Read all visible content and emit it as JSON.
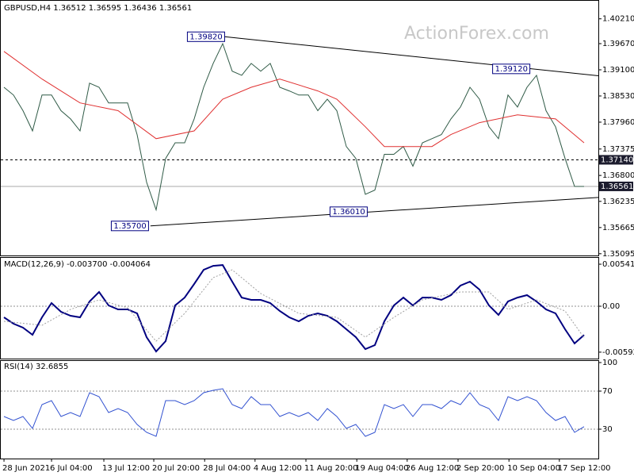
{
  "watermark": "ActionForex.com",
  "chart_data": [
    {
      "type": "line",
      "title": "GBPUSD,H4  1.36512 1.36595 1.36436 1.36561",
      "xlim": [
        -0.42,
        62.5
      ],
      "ylim": [
        1.3504,
        1.4062
      ],
      "grid": false,
      "yticks": [
        {
          "value": 1.4021,
          "label": "1.40210"
        },
        {
          "value": 1.3967,
          "label": "1.39670"
        },
        {
          "value": 1.391,
          "label": "1.39100"
        },
        {
          "value": 1.3853,
          "label": "1.38530"
        },
        {
          "value": 1.3796,
          "label": "1.37960"
        },
        1.37375,
        {
          "value": 1.368,
          "label": "1.36800"
        },
        1.36235,
        1.35665,
        1.35095
      ],
      "series": [
        {
          "name": "GBPUSD",
          "color": "#2f5a46",
          "style": "thin",
          "values": [
            1.3872,
            1.3855,
            1.3821,
            1.3777,
            1.3855,
            1.3855,
            1.3821,
            1.3803,
            1.3777,
            1.3881,
            1.3872,
            1.3838,
            1.3838,
            1.3838,
            1.3769,
            1.3665,
            1.3605,
            1.3717,
            1.3751,
            1.3751,
            1.3803,
            1.3872,
            1.3924,
            1.3967,
            1.3907,
            1.3898,
            1.3924,
            1.3907,
            1.3924,
            1.3872,
            1.3864,
            1.3855,
            1.3855,
            1.3821,
            1.3846,
            1.3821,
            1.3743,
            1.3717,
            1.3639,
            1.3648,
            1.3726,
            1.3726,
            1.3743,
            1.37,
            1.3751,
            1.376,
            1.3769,
            1.3803,
            1.3829,
            1.3872,
            1.3846,
            1.3786,
            1.376,
            1.3855,
            1.3829,
            1.3872,
            1.3898,
            1.3821,
            1.3786,
            1.3717,
            1.3656,
            1.36561
          ]
        },
        {
          "name": "MA",
          "color": "#e03030",
          "style": "thin",
          "x": [
            0,
            4,
            8,
            12,
            16,
            20,
            23,
            26,
            29,
            33,
            35,
            38,
            40,
            45,
            47,
            50,
            54,
            58,
            61
          ],
          "values": [
            1.395,
            1.389,
            1.3838,
            1.3821,
            1.376,
            1.3777,
            1.3846,
            1.3872,
            1.389,
            1.3864,
            1.3846,
            1.3786,
            1.3743,
            1.3743,
            1.3769,
            1.3795,
            1.3812,
            1.3803,
            1.3751
          ]
        }
      ],
      "trendlines": [
        {
          "x": [
            23.2,
            62.5
          ],
          "values": [
            1.3982,
            1.3897
          ]
        },
        {
          "x": [
            15.4,
            62.5
          ],
          "values": [
            1.357,
            1.3632
          ]
        }
      ],
      "annotations": [
        {
          "x": 23.2,
          "value": 1.3982,
          "label": "1.39820"
        },
        {
          "x": 55.3,
          "value": 1.3912,
          "label": "1.39120"
        },
        {
          "x": 15.2,
          "value": 1.357,
          "label": "1.35700"
        },
        {
          "x": 38.2,
          "value": 1.3601,
          "label": "1.36010"
        }
      ],
      "level_line": {
        "value": 1.3714,
        "label": "1.37140"
      },
      "current_price": 1.36561
    },
    {
      "type": "line",
      "title": "MACD(12,26,9) -0.003700 -0.004064",
      "xlim": [
        -0.42,
        62.5
      ],
      "ylim": [
        -0.00675,
        0.00624
      ],
      "grid": false,
      "zero_line": true,
      "yticks": [
        0.005419,
        {
          "value": 0,
          "label": "0.00"
        },
        -0.005921
      ],
      "series": [
        {
          "name": "MACD",
          "color": "#000080",
          "style": "thick",
          "values": [
            -0.00143,
            -0.00225,
            -0.00276,
            -0.00368,
            -0.00143,
            0.00041,
            -0.00072,
            -0.00123,
            -0.00143,
            0.00061,
            0.00184,
            0.0001,
            -0.00041,
            -0.00041,
            -0.00092,
            -0.00399,
            -0.00583,
            -0.0045,
            0.0001,
            0.00112,
            0.00286,
            0.0047,
            0.00521,
            0.00531,
            0.00317,
            0.00112,
            0.00082,
            0.00082,
            0.00041,
            -0.00061,
            -0.00143,
            -0.00194,
            -0.00123,
            -0.00092,
            -0.00123,
            -0.00194,
            -0.00297,
            -0.00399,
            -0.00552,
            -0.00501,
            -0.00194,
            0.0001,
            0.00112,
            0.0001,
            0.00112,
            0.00112,
            0.00082,
            0.00143,
            0.00266,
            0.00317,
            0.00215,
            0.0001,
            -0.00112,
            0.00061,
            0.00112,
            0.00143,
            0.00061,
            -0.00041,
            -0.00092,
            -0.00297,
            -0.0048,
            -0.0037
          ]
        },
        {
          "name": "Signal",
          "color": "#a0a0a0",
          "style": "dotted",
          "x": [
            0,
            4,
            7,
            10,
            13,
            16,
            19,
            22,
            24,
            27,
            31,
            35,
            38,
            41,
            44,
            48,
            51,
            53,
            56,
            59,
            61
          ],
          "values": [
            -0.00194,
            -0.00245,
            -0.00041,
            0.00082,
            -0.0002,
            -0.0045,
            -0.00092,
            0.00368,
            0.0047,
            0.00164,
            -0.00092,
            -0.00143,
            -0.00399,
            -0.00143,
            0.00082,
            0.00184,
            0.00184,
            -0.00041,
            0.00082,
            -0.00061,
            -0.004064
          ]
        }
      ]
    },
    {
      "type": "line",
      "title": "RSI(14) 32.6855",
      "xlim": [
        -0.42,
        62.5
      ],
      "ylim": [
        0,
        100
      ],
      "grid": true,
      "yticks": [
        100,
        70,
        30
      ],
      "xticks": [
        {
          "value": 0,
          "label": "28 Jun 2021"
        },
        {
          "value": 5,
          "label": "6 Jul 04:00"
        },
        {
          "value": 10.5,
          "label": "13 Jul 12:00"
        },
        {
          "value": 15.75,
          "label": "20 Jul 20:00"
        },
        {
          "value": 21.1,
          "label": "28 Jul 04:00"
        },
        {
          "value": 26.4,
          "label": "4 Aug 12:00"
        },
        {
          "value": 31.75,
          "label": "11 Aug 20:00"
        },
        {
          "value": 37.1,
          "label": "19 Aug 04:00"
        },
        {
          "value": 42.4,
          "label": "26 Aug 12:00"
        },
        {
          "value": 47.75,
          "label": "2 Sep 20:00"
        },
        {
          "value": 53.1,
          "label": "10 Sep 04:00"
        },
        {
          "value": 58.4,
          "label": "17 Sep 12:00"
        }
      ],
      "series": [
        {
          "name": "RSI",
          "color": "#3050d0",
          "style": "thin",
          "values": [
            43.3,
            39.2,
            43.3,
            30.8,
            55.8,
            60,
            43.3,
            47.5,
            43.3,
            68.3,
            64.2,
            47.5,
            51.7,
            47.5,
            35,
            26.7,
            22.5,
            60,
            60,
            55.8,
            60,
            68.3,
            70.8,
            72.5,
            55.8,
            51.7,
            64.2,
            55.8,
            55.8,
            43.3,
            47.5,
            43.3,
            47.5,
            39.2,
            51.7,
            43.3,
            30.8,
            35,
            22.5,
            26.7,
            55.8,
            51.7,
            55.8,
            43.3,
            55.8,
            55.8,
            51.7,
            60,
            55.8,
            68.3,
            55.8,
            51.7,
            39.2,
            64.2,
            60,
            64.2,
            60,
            47.5,
            39.2,
            43.3,
            26.7,
            32.6855
          ]
        }
      ]
    }
  ]
}
